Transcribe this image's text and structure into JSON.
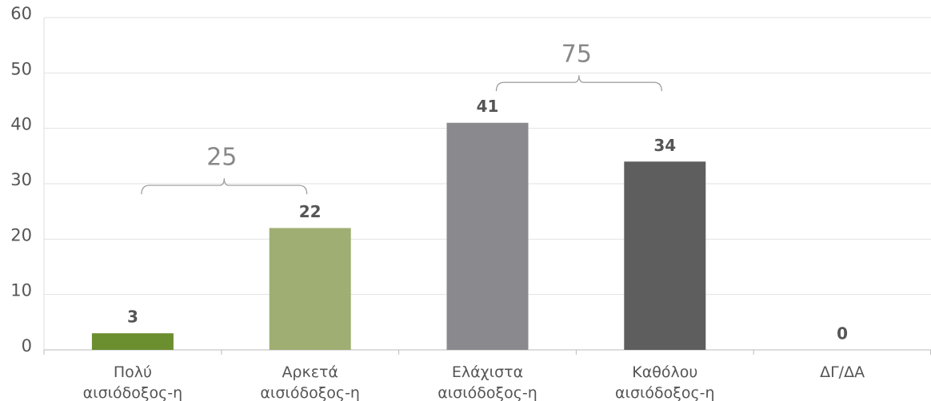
{
  "chart_data": {
    "type": "bar",
    "categories": [
      [
        "Πολύ",
        "αισιόδοξος-η"
      ],
      [
        "Αρκετά",
        "αισιόδοξος-η"
      ],
      [
        "Ελάχιστα",
        "αισιόδοξος-η"
      ],
      [
        "Καθόλου",
        "αισιόδοξος-η"
      ],
      [
        "ΔΓ/ΔΑ"
      ]
    ],
    "values": [
      3,
      22,
      41,
      34,
      0
    ],
    "colors": [
      "#6b8e2f",
      "#9fae72",
      "#8a8a8e",
      "#5e5e5e",
      "#5e5e5e"
    ],
    "ylim": [
      0,
      60
    ],
    "yticks": [
      0,
      10,
      20,
      30,
      40,
      50,
      60
    ],
    "grid": true,
    "annotations": [
      "25",
      "75"
    ]
  }
}
